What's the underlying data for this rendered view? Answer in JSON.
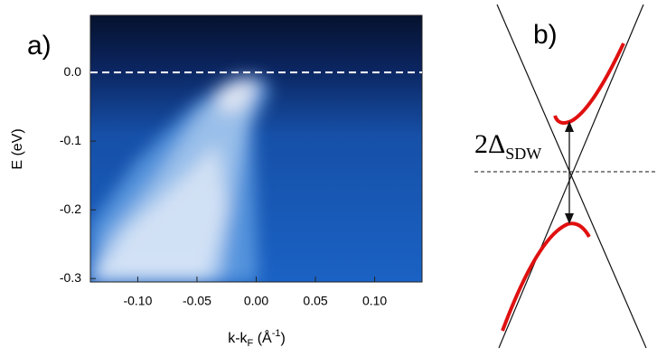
{
  "chart_data": [
    {
      "type": "heatmap",
      "panel_label": "a)",
      "ylabel": "E (eV)",
      "xlabel": {
        "main": "k-k",
        "sub": "F",
        "unit": " (Å",
        "sup": "-1",
        "close": ")"
      },
      "xlim": [
        -0.14,
        0.14
      ],
      "ylim": [
        -0.305,
        0.083
      ],
      "xticks": [
        {
          "value": -0.1,
          "label": "-0.10"
        },
        {
          "value": -0.05,
          "label": "-0.05"
        },
        {
          "value": 0,
          "label": "0.00"
        },
        {
          "value": 0.05,
          "label": "0.05"
        },
        {
          "value": 0.1,
          "label": "0.10"
        }
      ],
      "yticks": [
        {
          "value": 0,
          "label": "0.0"
        },
        {
          "value": -0.1,
          "label": "-0.1"
        },
        {
          "value": -0.2,
          "label": "-0.2"
        },
        {
          "value": -0.3,
          "label": "-0.3"
        }
      ],
      "hline": 0
    },
    {
      "type": "diagram",
      "panel_label": "b)",
      "gap_label": "2Δ",
      "gap_sub": "SDW"
    }
  ]
}
